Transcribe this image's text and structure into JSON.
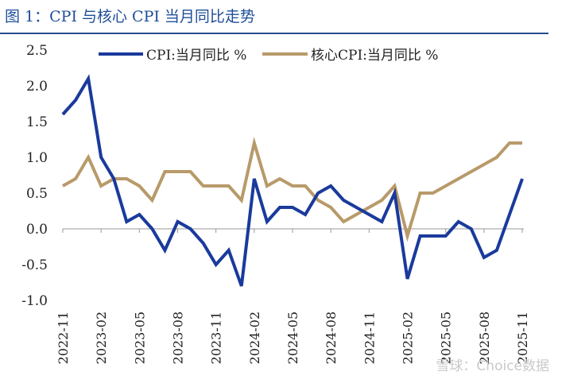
{
  "figure": {
    "title": "图 1：CPI 与核心 CPI 当月同比走势",
    "watermark": "雪球：Choice数据"
  },
  "chart_data": {
    "type": "line",
    "title": "",
    "xlabel": "",
    "ylabel": "",
    "ylim": [
      -1.0,
      2.5
    ],
    "yticks": [
      -1.0,
      -0.5,
      0.0,
      0.5,
      1.0,
      1.5,
      2.0,
      2.5
    ],
    "ytick_labels": [
      "-1.0",
      "-0.5",
      "0.0",
      "0.5",
      "1.0",
      "1.5",
      "2.0",
      "2.5"
    ],
    "x_tick_labels": [
      "2022-11",
      "2023-02",
      "2023-05",
      "2023-08",
      "2023-11",
      "2024-02",
      "2024-05",
      "2024-08",
      "2024-11",
      "2025-02",
      "2025-05",
      "2025-08",
      "2025-11"
    ],
    "x_tick_every": 3,
    "legend_position": "top",
    "categories": [
      "2022-11",
      "2022-12",
      "2023-01",
      "2023-02",
      "2023-03",
      "2023-04",
      "2023-05",
      "2023-06",
      "2023-07",
      "2023-08",
      "2023-09",
      "2023-10",
      "2023-11",
      "2023-12",
      "2024-01",
      "2024-02",
      "2024-03",
      "2024-04",
      "2024-05",
      "2024-06",
      "2024-07",
      "2024-08",
      "2024-09",
      "2024-10",
      "2024-11",
      "2024-12",
      "2025-01",
      "2025-02",
      "2025-03",
      "2025-04",
      "2025-05",
      "2025-06",
      "2025-07",
      "2025-08",
      "2025-09",
      "2025-10",
      "2025-11"
    ],
    "series": [
      {
        "name": "CPI:当月同比 %",
        "color": "#1a3a9c",
        "values": [
          1.6,
          1.8,
          2.1,
          1.0,
          0.7,
          0.1,
          0.2,
          0.0,
          -0.3,
          0.1,
          0.0,
          -0.2,
          -0.5,
          -0.3,
          -0.8,
          0.7,
          0.1,
          0.3,
          0.3,
          0.2,
          0.5,
          0.6,
          0.4,
          0.3,
          0.2,
          0.1,
          0.5,
          -0.7,
          -0.1,
          -0.1,
          -0.1,
          0.1,
          0.0,
          -0.4,
          -0.3,
          0.2,
          0.7
        ]
      },
      {
        "name": "核心CPI:当月同比 %",
        "color": "#b89a6a",
        "values": [
          0.6,
          0.7,
          1.0,
          0.6,
          0.7,
          0.7,
          0.6,
          0.4,
          0.8,
          0.8,
          0.8,
          0.6,
          0.6,
          0.6,
          0.4,
          1.2,
          0.6,
          0.7,
          0.6,
          0.6,
          0.4,
          0.3,
          0.1,
          0.2,
          0.3,
          0.4,
          0.6,
          -0.1,
          0.5,
          0.5,
          0.6,
          0.7,
          0.8,
          0.9,
          1.0,
          1.2,
          1.2
        ]
      }
    ]
  }
}
